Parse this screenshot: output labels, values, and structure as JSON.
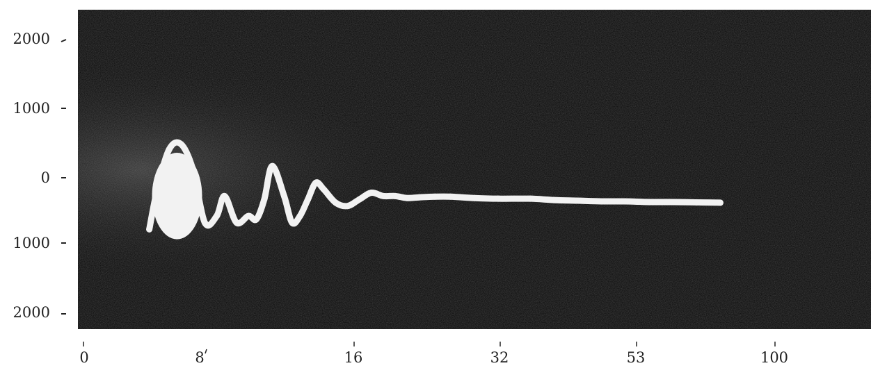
{
  "chart_data": {
    "type": "line",
    "title": "",
    "xlabel": "",
    "ylabel": "",
    "grid": false,
    "background_color": "#050505",
    "trace_color": "#f2f2f2",
    "y_tick_labels": [
      "2000",
      "1000",
      "0",
      "1000",
      "2000"
    ],
    "y_tick_values": [
      2000,
      1000,
      0,
      -1000,
      -2000
    ],
    "ylim": [
      -2300,
      2500
    ],
    "x_tick_labels": [
      "0",
      "8",
      "16",
      "32",
      "53",
      "100"
    ],
    "series": [
      {
        "x_norm": [
          0.09,
          0.1,
          0.115,
          0.13,
          0.145,
          0.16,
          0.175,
          0.185,
          0.2,
          0.215,
          0.225,
          0.235,
          0.245,
          0.26,
          0.27,
          0.28,
          0.29,
          0.3,
          0.31,
          0.325,
          0.34,
          0.355,
          0.37,
          0.385,
          0.4,
          0.415,
          0.43,
          0.45,
          0.47,
          0.5,
          0.53,
          0.57,
          0.6,
          0.63,
          0.66,
          0.69,
          0.72,
          0.75,
          0.78,
          0.81
        ],
        "y": [
          -800,
          -200,
          400,
          480,
          100,
          -700,
          -600,
          -300,
          -700,
          -600,
          -650,
          -350,
          150,
          -300,
          -700,
          -600,
          -350,
          -100,
          -200,
          -400,
          -450,
          -350,
          -250,
          -300,
          -300,
          -330,
          -320,
          -310,
          -310,
          -330,
          -340,
          -340,
          -360,
          -370,
          -380,
          -380,
          -390,
          -390,
          -395,
          -400
        ]
      }
    ],
    "blob": {
      "x_norm": 0.125,
      "y_center": -300,
      "y_half_height": 650
    }
  }
}
